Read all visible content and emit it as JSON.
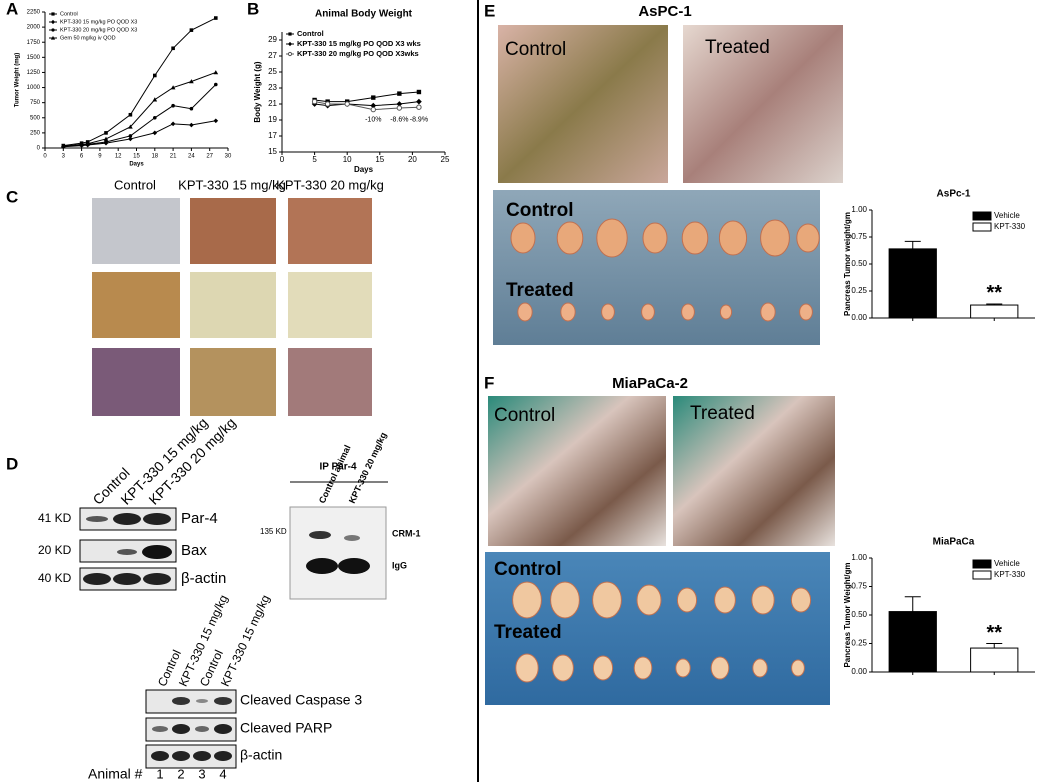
{
  "panel_labels": [
    "A",
    "B",
    "C",
    "D",
    "E",
    "F"
  ],
  "chart_data": [
    {
      "type": "line",
      "x_label": "Days",
      "y_label": "Tumor Weight (mg)",
      "x": [
        3,
        6,
        7,
        10,
        14,
        18,
        21,
        24,
        28
      ],
      "xlim": [
        0,
        30
      ],
      "xticks": [
        0,
        3,
        6,
        9,
        12,
        15,
        18,
        21,
        24,
        27,
        30
      ],
      "ylim": [
        0,
        2250
      ],
      "yticks": [
        0,
        250,
        500,
        750,
        1000,
        1250,
        1500,
        1750,
        2000,
        2250
      ],
      "legend": "upper left",
      "series": [
        {
          "name": "Control",
          "color": "#000000",
          "marker": "square",
          "values": [
            40,
            80,
            100,
            250,
            550,
            1200,
            1650,
            1950,
            2150
          ]
        },
        {
          "name": "KPT-330 15 mg/kg PO QOD X3",
          "color": "#000000",
          "marker": "diamond",
          "values": [
            20,
            40,
            50,
            80,
            150,
            250,
            400,
            380,
            450
          ]
        },
        {
          "name": "KPT-330 20 mg/kg PO QOD X3",
          "color": "#000000",
          "marker": "circle",
          "values": [
            30,
            50,
            60,
            100,
            200,
            500,
            700,
            650,
            1050
          ]
        },
        {
          "name": "Gem 50 mg/kg iv QOD",
          "color": "#000000",
          "marker": "triangle",
          "values": [
            30,
            60,
            70,
            150,
            350,
            800,
            1000,
            1100,
            1250
          ]
        }
      ]
    },
    {
      "type": "line",
      "title": "Animal Body Weight",
      "x_label": "Days",
      "y_label": "Body Weight (g)",
      "x": [
        5,
        7,
        10,
        14,
        18,
        21
      ],
      "xlim": [
        0,
        25
      ],
      "xticks": [
        0,
        5,
        10,
        15,
        20,
        25
      ],
      "ylim": [
        15,
        30
      ],
      "yticks": [
        15,
        17,
        19,
        21,
        23,
        25,
        27,
        29
      ],
      "legend": "upper left",
      "annotations": [
        "-10%",
        "-8.6%",
        "-8.9%"
      ],
      "series": [
        {
          "name": "Control",
          "color": "#000000",
          "marker": "square",
          "values": [
            21.5,
            21.3,
            21.3,
            21.8,
            22.3,
            22.5
          ]
        },
        {
          "name": "KPT-330 15 mg/kg PO QOD X3 wks",
          "color": "#000000",
          "marker": "diamond",
          "values": [
            21.0,
            20.8,
            21.0,
            20.8,
            21.0,
            21.3
          ]
        },
        {
          "name": "KPT-330 20 mg/kg PO QOD X3wks",
          "color": "#555555",
          "marker": "open-circle",
          "values": [
            21.3,
            21.0,
            21.0,
            20.3,
            20.5,
            20.6
          ]
        }
      ]
    },
    {
      "type": "bar",
      "title": "AsPc-1",
      "y_label": "Pancreas Tumor weight/gm",
      "ylim": [
        0,
        1
      ],
      "yticks": [
        {
          "value": 0,
          "label": "0.00"
        },
        {
          "value": 0.25,
          "label": "0.25"
        },
        {
          "value": 0.5,
          "label": "0.50"
        },
        {
          "value": 0.75,
          "label": "0.75"
        },
        {
          "value": 1,
          "label": "1.00"
        }
      ],
      "legend": "upper right",
      "annotation": "**",
      "series": [
        {
          "name": "Vehicle",
          "color": "#000000",
          "values": [
            0.64
          ],
          "errors": [
            0.07
          ]
        },
        {
          "name": "KPT-330",
          "color": "#ffffff",
          "values": [
            0.12
          ],
          "errors": [
            0.01
          ]
        }
      ]
    },
    {
      "type": "bar",
      "title": "MiaPaCa",
      "y_label": "Pancreas Tumor Weight/gm",
      "ylim": [
        0,
        1
      ],
      "yticks": [
        {
          "value": 0,
          "label": "0.00"
        },
        {
          "value": 0.25,
          "label": "0.25"
        },
        {
          "value": 0.5,
          "label": "0.50"
        },
        {
          "value": 0.75,
          "label": "0.75"
        },
        {
          "value": 1,
          "label": "1.00"
        }
      ],
      "legend": "upper right",
      "annotation": "**",
      "series": [
        {
          "name": "Vehicle",
          "color": "#000000",
          "values": [
            0.53
          ],
          "errors": [
            0.13
          ]
        },
        {
          "name": "KPT-330",
          "color": "#ffffff",
          "values": [
            0.21
          ],
          "errors": [
            0.04
          ]
        }
      ]
    }
  ],
  "panel_c": {
    "columns": [
      "Control",
      "KPT-330 15 mg/kg",
      "KPT-330 20 mg/kg"
    ]
  },
  "panel_d": {
    "lanes": [
      "Control",
      "KPT-330 15 mg/kg",
      "KPT-330 20 mg/kg"
    ],
    "sizes": [
      "41 KD",
      "20 KD",
      "40 KD"
    ],
    "proteins": [
      "Par-4",
      "Bax",
      "β-actin"
    ],
    "ip": {
      "title": "IP Par-4",
      "lanes": [
        "Control animal",
        "KPT-330 20 mg/kg"
      ],
      "size": "135 KD",
      "bands": [
        "CRM-1",
        "IgG"
      ]
    },
    "blot2": {
      "lanes": [
        "Control",
        "KPT-330 15 mg/kg",
        "Control",
        "KPT-330 15 mg/kg"
      ],
      "proteins": [
        "Cleaved Caspase 3",
        "Cleaved PARP",
        "β-actin"
      ],
      "animal_label": "Animal #",
      "animals": [
        1,
        2,
        3,
        4
      ]
    }
  },
  "panel_e": {
    "title": "AsPC-1",
    "photo_labels": [
      "Control",
      "Treated"
    ],
    "tumor_labels": [
      "Control",
      "Treated"
    ]
  },
  "panel_f": {
    "title": "MiaPaCa-2",
    "photo_labels": [
      "Control",
      "Treated"
    ],
    "tumor_labels": [
      "Control",
      "Treated"
    ]
  }
}
